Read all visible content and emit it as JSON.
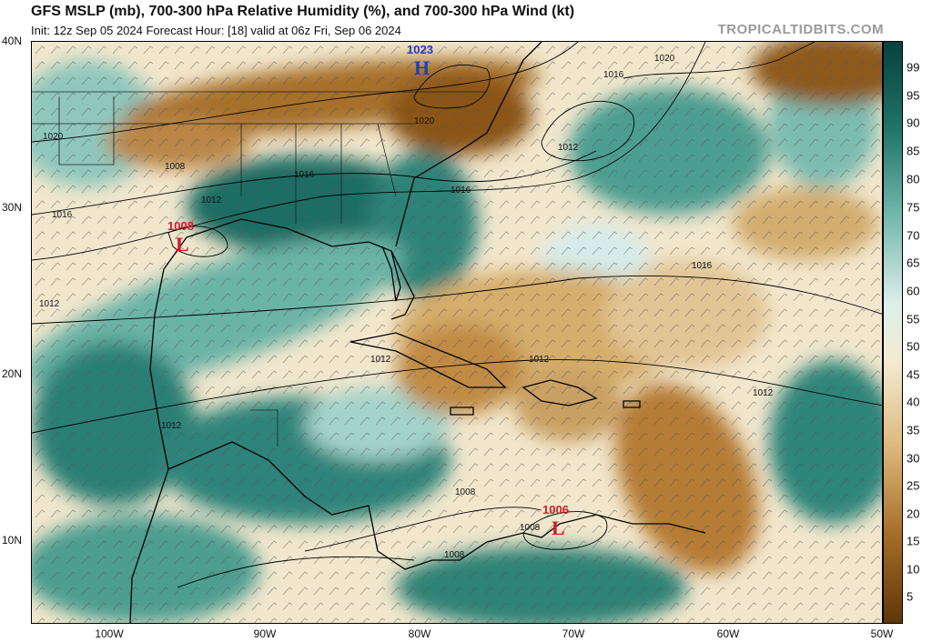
{
  "header": {
    "title": "GFS MSLP (mb), 700-300 hPa Relative Humidity (%), and 700-300 hPa Wind (kt)",
    "subtitle": "Init: 12z Sep 05 2024   Forecast Hour: [18]   valid at 06z Fri, Sep 06 2024",
    "brand": "TROPICALTIDBITS.COM"
  },
  "axes": {
    "lat_labels": [
      "40N",
      "30N",
      "20N",
      "10N"
    ],
    "lon_labels": [
      "100W",
      "90W",
      "80W",
      "70W",
      "60W",
      "50W"
    ]
  },
  "colorbar": {
    "labels": [
      "99",
      "95",
      "90",
      "85",
      "80",
      "75",
      "70",
      "65",
      "60",
      "55",
      "50",
      "45",
      "40",
      "35",
      "30",
      "25",
      "20",
      "15",
      "10",
      "5"
    ],
    "colors": {
      "dry_dark": "#7a4a14",
      "dry": "#b07a35",
      "dry_light": "#d9b57a",
      "neutral": "#f4ead2",
      "moist_light": "#cfe8e3",
      "moist": "#5aa89c",
      "moist_dark": "#0f5a52"
    }
  },
  "systems": [
    {
      "type": "H",
      "pressure": "1023",
      "color": "#1f3fbf"
    },
    {
      "type": "L",
      "pressure": "1008",
      "color": "#d11a2a"
    },
    {
      "type": "L",
      "pressure": "1006",
      "color": "#d11a2a"
    }
  ],
  "isobar_labels": [
    "1020",
    "1016",
    "1012",
    "1008",
    "1016",
    "1012",
    "1020",
    "1016",
    "1012",
    "1016",
    "1012",
    "1012",
    "1012",
    "1012",
    "1008",
    "1008",
    "1008",
    "1020",
    "1016"
  ]
}
